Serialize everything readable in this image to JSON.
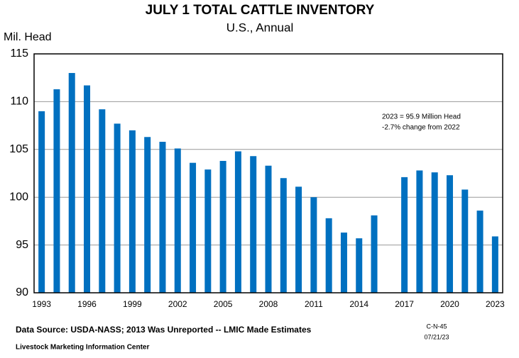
{
  "chart_data": {
    "type": "bar",
    "title": "JULY 1 TOTAL CATTLE INVENTORY",
    "subtitle": "U.S., Annual",
    "y_label": "Mil. Head",
    "annotations": [
      "2023 = 95.9 Million Head",
      "-2.7% change from 2022"
    ],
    "source": "Data Source:  USDA-NASS; 2013 Was Unreported -- LMIC Made Estimates",
    "credit": "Livestock Marketing Information Center",
    "chart_id": "C-N-45",
    "date": "07/21/23",
    "categories": [
      "1993",
      null,
      null,
      "1996",
      null,
      null,
      "1999",
      null,
      null,
      "2002",
      null,
      null,
      "2005",
      null,
      null,
      "2008",
      null,
      null,
      "2011",
      null,
      null,
      "2014",
      null,
      null,
      "2017",
      null,
      null,
      "2020",
      null,
      null,
      "2023"
    ],
    "values": [
      109,
      111.3,
      113,
      111.7,
      109.2,
      107.7,
      107,
      106.3,
      105.8,
      105.1,
      103.6,
      102.9,
      103.8,
      104.8,
      104.3,
      103.3,
      102,
      101.1,
      100,
      97.8,
      96.3,
      95.7,
      98.1,
      null,
      102.1,
      102.8,
      102.6,
      102.3,
      100.8,
      98.6,
      95.9
    ],
    "color": "#0070c0",
    "ylim": [
      90,
      115
    ],
    "yticks": [
      90,
      95,
      100,
      105,
      110,
      115
    ],
    "grid": true
  }
}
